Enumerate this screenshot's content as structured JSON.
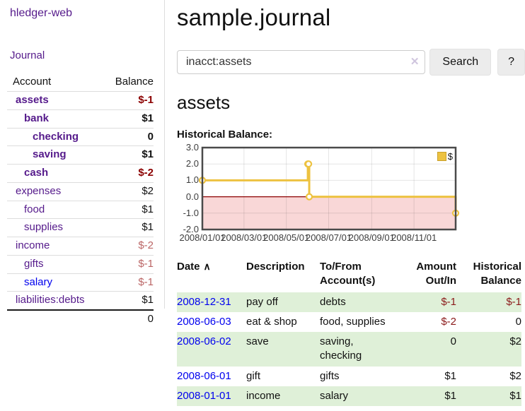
{
  "sidebar": {
    "app_title": "hledger-web",
    "journal_label": "Journal",
    "accounts_table": {
      "account_header": "Account",
      "balance_header": "Balance",
      "rows": [
        {
          "name": "assets",
          "depth": 1,
          "bold": true,
          "balance": "$-1",
          "neg": true,
          "link_style": "visited"
        },
        {
          "name": "bank",
          "depth": 2,
          "bold": true,
          "balance": "$1",
          "neg": false,
          "link_style": "visited"
        },
        {
          "name": "checking",
          "depth": 3,
          "bold": true,
          "balance": "0",
          "neg": false,
          "link_style": "visited"
        },
        {
          "name": "saving",
          "depth": 3,
          "bold": true,
          "balance": "$1",
          "neg": false,
          "link_style": "visited"
        },
        {
          "name": "cash",
          "depth": 2,
          "bold": true,
          "balance": "$-2",
          "neg": true,
          "link_style": "visited"
        },
        {
          "name": "expenses",
          "depth": 1,
          "bold": false,
          "balance": "$2",
          "neg": false,
          "link_style": "visited"
        },
        {
          "name": "food",
          "depth": 2,
          "bold": false,
          "balance": "$1",
          "neg": false,
          "link_style": "visited"
        },
        {
          "name": "supplies",
          "depth": 2,
          "bold": false,
          "balance": "$1",
          "neg": false,
          "link_style": "visited"
        },
        {
          "name": "income",
          "depth": 1,
          "bold": false,
          "balance": "$-2",
          "neg": true,
          "link_style": "visited"
        },
        {
          "name": "gifts",
          "depth": 2,
          "bold": false,
          "balance": "$-1",
          "neg": true,
          "link_style": "visited"
        },
        {
          "name": "salary",
          "depth": 2,
          "bold": false,
          "balance": "$-1",
          "neg": true,
          "link_style": "unvisited"
        },
        {
          "name": "liabilities:debts",
          "depth": 1,
          "bold": false,
          "balance": "$1",
          "neg": false,
          "link_style": "visited"
        }
      ],
      "total": "0"
    }
  },
  "main": {
    "title": "sample.journal",
    "search": {
      "value": "inacct:assets",
      "clear_icon": "✕",
      "button_label": "Search",
      "help_label": "?"
    },
    "account_heading": "assets",
    "chart_title": "Historical Balance:"
  },
  "chart_data": {
    "type": "line",
    "style": "step-after",
    "title": "Historical Balance:",
    "x_range": [
      "2008-01-01",
      "2008-12-31"
    ],
    "ylim": [
      -2,
      3
    ],
    "yticks": [
      "3.0",
      "2.0",
      "1.0",
      "0.0",
      "-1.0",
      "-2.0"
    ],
    "ytick_values": [
      3,
      2,
      1,
      0,
      -1,
      -2
    ],
    "xticks": [
      {
        "label": "2008/01/01",
        "date": "2008-01-01"
      },
      {
        "label": "2008/03/01",
        "date": "2008-03-01"
      },
      {
        "label": "2008/05/01",
        "date": "2008-05-01"
      },
      {
        "label": "2008/07/01",
        "date": "2008-07-01"
      },
      {
        "label": "2008/09/01",
        "date": "2008-09-01"
      },
      {
        "label": "2008/11/01",
        "date": "2008-11-01"
      }
    ],
    "series": [
      {
        "name": "$",
        "color": "#edc240",
        "points": [
          {
            "date": "2008-01-01",
            "value": 1
          },
          {
            "date": "2008-06-01",
            "value": 2
          },
          {
            "date": "2008-06-02",
            "value": 2
          },
          {
            "date": "2008-06-03",
            "value": 0
          },
          {
            "date": "2008-12-31",
            "value": -1
          }
        ]
      }
    ],
    "legend_position": "top-right",
    "grid": true,
    "negative_region_color": "#f9d7d7",
    "zero_line_color": "#8b0000",
    "border_color": "#4a4a4a"
  },
  "register": {
    "headers": {
      "date": "Date",
      "sort_icon": "∧",
      "description": "Description",
      "accounts": "To/From Account(s)",
      "amount": "Amount Out/In",
      "balance": "Historical Balance"
    },
    "rows": [
      {
        "date": "2008-12-31",
        "description": "pay off",
        "accounts": "debts",
        "amount": "$-1",
        "balance": "$-1"
      },
      {
        "date": "2008-06-03",
        "description": "eat & shop",
        "accounts": "food, supplies",
        "amount": "$-2",
        "balance": "0"
      },
      {
        "date": "2008-06-02",
        "description": "save",
        "accounts": "saving, checking",
        "amount": "0",
        "balance": "$2"
      },
      {
        "date": "2008-06-01",
        "description": "gift",
        "accounts": "gifts",
        "amount": "$1",
        "balance": "$2"
      },
      {
        "date": "2008-01-01",
        "description": "income",
        "accounts": "salary",
        "amount": "$1",
        "balance": "$1"
      }
    ]
  }
}
